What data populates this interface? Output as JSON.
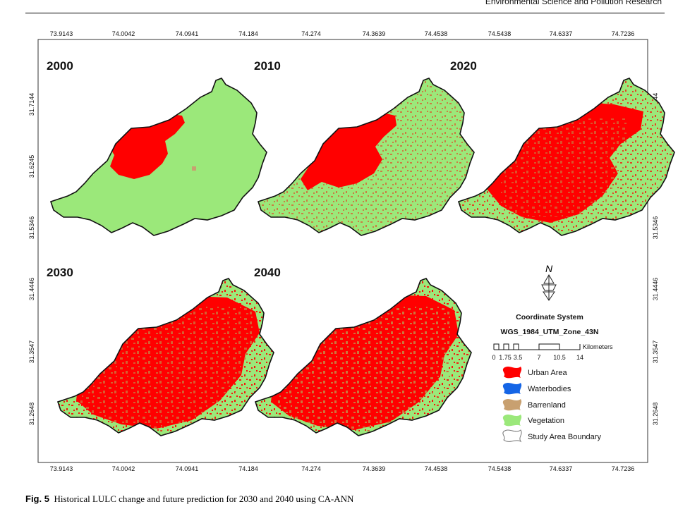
{
  "header": {
    "journal": "Environmental Science and Pollution Research"
  },
  "map": {
    "x_ticks": [
      "73.9143",
      "74.0042",
      "74.0941",
      "74.184",
      "74.274",
      "74.3639",
      "74.4538",
      "74.5438",
      "74.6337",
      "74.7236"
    ],
    "y_ticks": [
      "31.7144",
      "31.6245",
      "31.5346",
      "31.4446",
      "31.3547",
      "31.2648"
    ],
    "panels": [
      {
        "year": "2000"
      },
      {
        "year": "2010"
      },
      {
        "year": "2020"
      },
      {
        "year": "2030"
      },
      {
        "year": "2040"
      }
    ],
    "north_label": "N",
    "coordinate_system_title": "Coordinate System",
    "coordinate_system_value": "WGS_1984_UTM_Zone_43N",
    "scale": {
      "unit": "Kilometers",
      "labels": [
        "0",
        "1.75",
        "3.5",
        "7",
        "10.5",
        "14"
      ]
    },
    "legend": [
      {
        "label": "Urban Area",
        "color": "#ff0000"
      },
      {
        "label": "Waterbodies",
        "color": "#1565e6"
      },
      {
        "label": "Barrenland",
        "color": "#c8a070"
      },
      {
        "label": "Vegetation",
        "color": "#9be87a"
      },
      {
        "label": "Study Area Boundary",
        "color": "#ffffff"
      }
    ],
    "colors": {
      "vegetation": "#9be87a",
      "urban": "#ff0000",
      "water": "#1565e6",
      "barren": "#c8a070",
      "boundary": "#111111"
    }
  },
  "caption": {
    "label": "Fig. 5",
    "text": "Historical LULC change and future prediction for 2030 and 2040 using CA-ANN"
  }
}
